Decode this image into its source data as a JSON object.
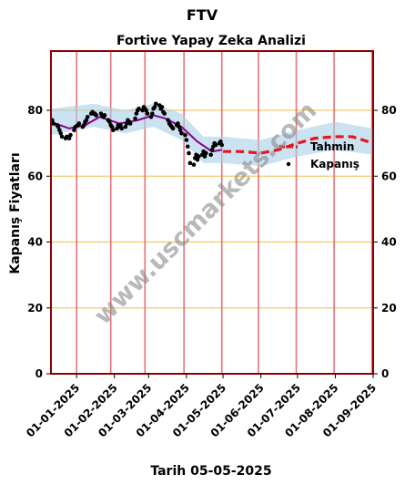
{
  "chart_data": {
    "type": "line",
    "title": "FTV",
    "subtitle": "Fortive Yapay Zeka Analizi",
    "xlabel": "Tarih 05-05-2025",
    "ylabel": "Kapanış Fiyatları",
    "ylim": [
      0,
      98
    ],
    "yticks": [
      0,
      20,
      40,
      60,
      80
    ],
    "x_range": [
      "2024-12-11",
      "2025-09-01"
    ],
    "xticks": [
      "01-01-2025",
      "01-02-2025",
      "01-03-2025",
      "01-04-2025",
      "01-05-2025",
      "01-06-2025",
      "01-07-2025",
      "01-08-2025",
      "01-09-2025"
    ],
    "vlines": [
      "2024-12-11",
      "2025-01-01",
      "2025-01-29",
      "2025-02-26",
      "2025-03-30",
      "2025-04-30",
      "2025-05-30",
      "2025-06-30",
      "2025-07-31",
      "2025-08-31"
    ],
    "hlines": [
      20,
      40,
      60,
      80
    ],
    "legend_position": "right-center",
    "legend": [
      {
        "label": "Tahmin",
        "style": "dashed-line",
        "color": "#e8141c"
      },
      {
        "label": "Kapanış",
        "style": "dot",
        "color": "#000000"
      }
    ],
    "watermark": "www.uscmarkets.com",
    "colors": {
      "border": "#8b0000",
      "vline": "#e8727a",
      "hline": "#f5c96b",
      "band": "#a9cfe6",
      "trend": "#8b008b",
      "forecast": "#e8141c",
      "points": "#000000"
    },
    "closing": [
      {
        "x": "2024-12-12",
        "y": 77.0
      },
      {
        "x": "2024-12-13",
        "y": 76.0
      },
      {
        "x": "2024-12-16",
        "y": 75.5
      },
      {
        "x": "2024-12-17",
        "y": 75.0
      },
      {
        "x": "2024-12-18",
        "y": 74.0
      },
      {
        "x": "2024-12-19",
        "y": 73.0
      },
      {
        "x": "2024-12-20",
        "y": 72.0
      },
      {
        "x": "2024-12-23",
        "y": 71.5
      },
      {
        "x": "2024-12-24",
        "y": 72.0
      },
      {
        "x": "2024-12-26",
        "y": 71.5
      },
      {
        "x": "2024-12-27",
        "y": 72.5
      },
      {
        "x": "2024-12-30",
        "y": 74.0
      },
      {
        "x": "2024-12-31",
        "y": 75.0
      },
      {
        "x": "2025-01-02",
        "y": 75.5
      },
      {
        "x": "2025-01-03",
        "y": 76.0
      },
      {
        "x": "2025-01-06",
        "y": 75.0
      },
      {
        "x": "2025-01-07",
        "y": 75.5
      },
      {
        "x": "2025-01-08",
        "y": 76.5
      },
      {
        "x": "2025-01-09",
        "y": 77.0
      },
      {
        "x": "2025-01-10",
        "y": 78.0
      },
      {
        "x": "2025-01-13",
        "y": 79.0
      },
      {
        "x": "2025-01-14",
        "y": 79.5
      },
      {
        "x": "2025-01-15",
        "y": 79.0
      },
      {
        "x": "2025-01-16",
        "y": 79.0
      },
      {
        "x": "2025-01-17",
        "y": 78.5
      },
      {
        "x": "2025-01-21",
        "y": 79.0
      },
      {
        "x": "2025-01-22",
        "y": 78.5
      },
      {
        "x": "2025-01-23",
        "y": 78.0
      },
      {
        "x": "2025-01-24",
        "y": 78.5
      },
      {
        "x": "2025-01-27",
        "y": 77.0
      },
      {
        "x": "2025-01-28",
        "y": 76.5
      },
      {
        "x": "2025-01-29",
        "y": 75.5
      },
      {
        "x": "2025-01-30",
        "y": 75.0
      },
      {
        "x": "2025-01-31",
        "y": 74.0
      },
      {
        "x": "2025-02-03",
        "y": 74.5
      },
      {
        "x": "2025-02-04",
        "y": 75.5
      },
      {
        "x": "2025-02-05",
        "y": 75.0
      },
      {
        "x": "2025-02-06",
        "y": 75.5
      },
      {
        "x": "2025-02-07",
        "y": 74.5
      },
      {
        "x": "2025-02-10",
        "y": 75.0
      },
      {
        "x": "2025-02-11",
        "y": 76.0
      },
      {
        "x": "2025-02-12",
        "y": 77.0
      },
      {
        "x": "2025-02-13",
        "y": 76.5
      },
      {
        "x": "2025-02-14",
        "y": 76.0
      },
      {
        "x": "2025-02-18",
        "y": 77.5
      },
      {
        "x": "2025-02-19",
        "y": 79.0
      },
      {
        "x": "2025-02-20",
        "y": 80.0
      },
      {
        "x": "2025-02-21",
        "y": 80.5
      },
      {
        "x": "2025-02-24",
        "y": 80.0
      },
      {
        "x": "2025-02-25",
        "y": 81.0
      },
      {
        "x": "2025-02-26",
        "y": 80.5
      },
      {
        "x": "2025-02-27",
        "y": 80.0
      },
      {
        "x": "2025-02-28",
        "y": 79.0
      },
      {
        "x": "2025-03-03",
        "y": 78.0
      },
      {
        "x": "2025-03-04",
        "y": 79.0
      },
      {
        "x": "2025-03-05",
        "y": 80.5
      },
      {
        "x": "2025-03-06",
        "y": 81.0
      },
      {
        "x": "2025-03-07",
        "y": 82.0
      },
      {
        "x": "2025-03-10",
        "y": 81.5
      },
      {
        "x": "2025-03-11",
        "y": 80.5
      },
      {
        "x": "2025-03-12",
        "y": 81.0
      },
      {
        "x": "2025-03-13",
        "y": 79.5
      },
      {
        "x": "2025-03-14",
        "y": 79.0
      },
      {
        "x": "2025-03-17",
        "y": 77.0
      },
      {
        "x": "2025-03-18",
        "y": 76.0
      },
      {
        "x": "2025-03-19",
        "y": 75.5
      },
      {
        "x": "2025-03-20",
        "y": 75.0
      },
      {
        "x": "2025-03-21",
        "y": 74.5
      },
      {
        "x": "2025-03-24",
        "y": 75.5
      },
      {
        "x": "2025-03-25",
        "y": 76.0
      },
      {
        "x": "2025-03-26",
        "y": 75.0
      },
      {
        "x": "2025-03-27",
        "y": 74.0
      },
      {
        "x": "2025-03-28",
        "y": 73.0
      },
      {
        "x": "2025-03-31",
        "y": 72.5
      },
      {
        "x": "2025-04-01",
        "y": 71.0
      },
      {
        "x": "2025-04-02",
        "y": 69.0
      },
      {
        "x": "2025-04-03",
        "y": 67.0
      },
      {
        "x": "2025-04-04",
        "y": 64.0
      },
      {
        "x": "2025-04-07",
        "y": 63.5
      },
      {
        "x": "2025-04-08",
        "y": 65.5
      },
      {
        "x": "2025-04-09",
        "y": 66.5
      },
      {
        "x": "2025-04-10",
        "y": 65.0
      },
      {
        "x": "2025-04-11",
        "y": 66.0
      },
      {
        "x": "2025-04-14",
        "y": 66.5
      },
      {
        "x": "2025-04-15",
        "y": 67.5
      },
      {
        "x": "2025-04-16",
        "y": 66.0
      },
      {
        "x": "2025-04-17",
        "y": 67.0
      },
      {
        "x": "2025-04-21",
        "y": 66.5
      },
      {
        "x": "2025-04-22",
        "y": 68.0
      },
      {
        "x": "2025-04-23",
        "y": 69.0
      },
      {
        "x": "2025-04-24",
        "y": 70.0
      },
      {
        "x": "2025-04-25",
        "y": 69.5
      },
      {
        "x": "2025-04-28",
        "y": 70.0
      },
      {
        "x": "2025-04-29",
        "y": 70.5
      },
      {
        "x": "2025-04-30",
        "y": 69.5
      }
    ],
    "trend": [
      {
        "x": "2024-12-11",
        "y": 76.5
      },
      {
        "x": "2024-12-26",
        "y": 74.5
      },
      {
        "x": "2025-01-08",
        "y": 75.5
      },
      {
        "x": "2025-01-20",
        "y": 78.0
      },
      {
        "x": "2025-02-05",
        "y": 76.0
      },
      {
        "x": "2025-02-20",
        "y": 77.0
      },
      {
        "x": "2025-03-05",
        "y": 78.5
      },
      {
        "x": "2025-03-15",
        "y": 77.5
      },
      {
        "x": "2025-03-28",
        "y": 75.0
      },
      {
        "x": "2025-04-10",
        "y": 70.5
      },
      {
        "x": "2025-04-22",
        "y": 67.5
      },
      {
        "x": "2025-04-30",
        "y": 68.0
      }
    ],
    "forecast": [
      {
        "x": "2025-05-01",
        "y": 67.5
      },
      {
        "x": "2025-05-15",
        "y": 67.5
      },
      {
        "x": "2025-06-01",
        "y": 67.0
      },
      {
        "x": "2025-06-15",
        "y": 68.0
      },
      {
        "x": "2025-07-01",
        "y": 70.0
      },
      {
        "x": "2025-07-15",
        "y": 71.5
      },
      {
        "x": "2025-08-01",
        "y": 72.0
      },
      {
        "x": "2025-08-15",
        "y": 72.0
      },
      {
        "x": "2025-09-01",
        "y": 70.0
      }
    ],
    "band": [
      {
        "x": "2024-12-11",
        "lo": 72.5,
        "hi": 80.5
      },
      {
        "x": "2025-01-15",
        "lo": 75.0,
        "hi": 82.0
      },
      {
        "x": "2025-02-10",
        "lo": 73.0,
        "hi": 80.0
      },
      {
        "x": "2025-03-05",
        "lo": 75.0,
        "hi": 82.0
      },
      {
        "x": "2025-03-28",
        "lo": 71.0,
        "hi": 79.0
      },
      {
        "x": "2025-04-15",
        "lo": 64.0,
        "hi": 72.0
      },
      {
        "x": "2025-05-01",
        "lo": 64.0,
        "hi": 72.0
      },
      {
        "x": "2025-06-01",
        "lo": 63.0,
        "hi": 71.0
      },
      {
        "x": "2025-07-01",
        "lo": 66.0,
        "hi": 74.0
      },
      {
        "x": "2025-08-01",
        "lo": 68.0,
        "hi": 76.5
      },
      {
        "x": "2025-09-01",
        "lo": 66.5,
        "hi": 74.5
      }
    ]
  }
}
